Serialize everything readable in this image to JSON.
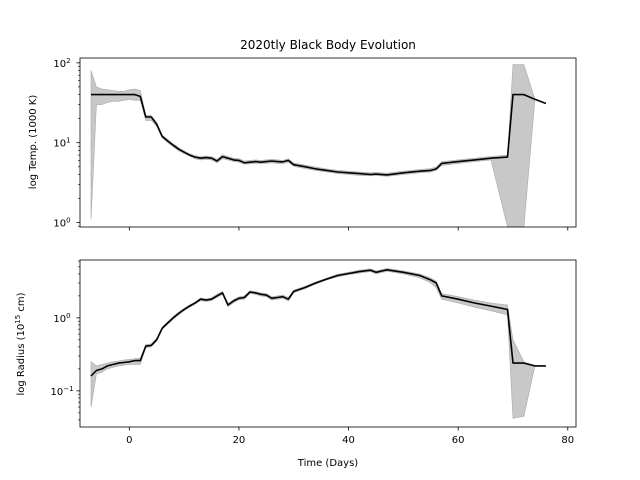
{
  "chart_data": {
    "type": "line",
    "title": "2020tly Black Body Evolution",
    "xlabel": "Time (Days)",
    "x_ticks": [
      0,
      20,
      40,
      60,
      80
    ],
    "xlim": [
      -9,
      81.5
    ],
    "colors": {
      "line": "#000000",
      "band": "#c8c8c8",
      "band_edge": "#a9a9a9"
    },
    "panels": [
      {
        "name": "temperature",
        "ylabel": "log Temp. (1000 K)",
        "yscale": "log",
        "ylim": [
          0.88,
          115
        ],
        "y_ticks": [
          {
            "value": 1,
            "base": "10",
            "exp": "0"
          },
          {
            "value": 10,
            "base": "10",
            "exp": "1"
          },
          {
            "value": 100,
            "base": "10",
            "exp": "2"
          }
        ],
        "x": [
          -7,
          -6,
          -5,
          -4,
          -3,
          -2,
          -1,
          0,
          1,
          2,
          3,
          4,
          5,
          6,
          7,
          8,
          9,
          10,
          11,
          12,
          13,
          14,
          15,
          16,
          17,
          18,
          19,
          20,
          21,
          22,
          23,
          24,
          25,
          26,
          27,
          28,
          29,
          30,
          32,
          34,
          36,
          38,
          40,
          42,
          44,
          45,
          47,
          50,
          53,
          55,
          56,
          57,
          60,
          63,
          66,
          69,
          70,
          72,
          74,
          76
        ],
        "y": [
          40,
          40,
          40,
          40,
          40,
          40,
          40,
          40,
          40,
          38,
          21,
          21,
          17,
          12,
          10.5,
          9.3,
          8.3,
          7.6,
          7.0,
          6.6,
          6.4,
          6.5,
          6.4,
          5.9,
          6.7,
          6.4,
          6.1,
          6.0,
          5.6,
          5.7,
          5.8,
          5.7,
          5.8,
          5.9,
          5.8,
          5.75,
          6.0,
          5.3,
          5.0,
          4.7,
          4.5,
          4.3,
          4.2,
          4.1,
          4.0,
          4.05,
          3.95,
          4.2,
          4.4,
          4.5,
          4.7,
          5.5,
          5.8,
          6.1,
          6.4,
          6.6,
          40,
          40,
          35,
          31
        ],
        "y_lower": [
          1.1,
          30,
          30,
          32,
          33,
          33,
          34,
          35,
          34,
          34,
          19,
          19,
          16,
          11.5,
          10,
          8.9,
          7.9,
          7.3,
          6.8,
          6.3,
          6.1,
          6.2,
          6.1,
          5.6,
          6.3,
          6.1,
          5.8,
          5.7,
          5.4,
          5.45,
          5.5,
          5.5,
          5.5,
          5.6,
          5.5,
          5.5,
          5.7,
          5.05,
          4.75,
          4.5,
          4.3,
          4.1,
          4.0,
          3.9,
          3.85,
          3.9,
          3.8,
          4.0,
          4.2,
          4.3,
          4.5,
          5.2,
          5.5,
          5.8,
          6.1,
          0.5,
          0.5,
          0.5,
          35,
          31
        ],
        "y_upper": [
          80,
          50,
          47,
          46,
          45,
          44,
          44,
          46,
          47,
          45,
          22,
          22,
          18,
          12.5,
          11,
          9.7,
          8.7,
          7.9,
          7.3,
          6.9,
          6.7,
          6.8,
          6.7,
          6.2,
          7.1,
          6.7,
          6.4,
          6.3,
          5.9,
          6.0,
          6.1,
          6.0,
          6.1,
          6.2,
          6.1,
          6.0,
          6.3,
          5.55,
          5.25,
          4.95,
          4.7,
          4.5,
          4.4,
          4.3,
          4.2,
          4.25,
          4.15,
          4.4,
          4.6,
          4.75,
          4.95,
          5.8,
          6.1,
          6.4,
          6.7,
          7.0,
          95,
          95,
          35,
          31
        ]
      },
      {
        "name": "radius",
        "ylabel_base": "log Radius (10",
        "ylabel_exp": "15",
        "ylabel_tail": " cm)",
        "yscale": "log",
        "ylim": [
          0.032,
          6.2
        ],
        "y_ticks": [
          {
            "value": 0.1,
            "base": "10",
            "exp": "−1"
          },
          {
            "value": 1,
            "base": "10",
            "exp": "0"
          }
        ],
        "x": [
          -7,
          -6,
          -5,
          -4,
          -3,
          -2,
          -1,
          0,
          1,
          2,
          3,
          4,
          5,
          6,
          7,
          8,
          9,
          10,
          11,
          12,
          13,
          14,
          15,
          16,
          17,
          18,
          19,
          20,
          21,
          22,
          23,
          24,
          25,
          26,
          27,
          28,
          29,
          30,
          32,
          34,
          36,
          38,
          40,
          42,
          44,
          45,
          47,
          50,
          53,
          55,
          56,
          57,
          60,
          63,
          66,
          69,
          70,
          72,
          74,
          76
        ],
        "y": [
          0.16,
          0.19,
          0.2,
          0.22,
          0.23,
          0.24,
          0.245,
          0.25,
          0.26,
          0.26,
          0.41,
          0.42,
          0.5,
          0.72,
          0.85,
          1.0,
          1.15,
          1.3,
          1.45,
          1.6,
          1.8,
          1.75,
          1.8,
          2.0,
          2.2,
          1.5,
          1.7,
          1.85,
          1.9,
          2.25,
          2.2,
          2.1,
          2.05,
          1.85,
          1.9,
          1.95,
          1.8,
          2.3,
          2.6,
          3.0,
          3.4,
          3.8,
          4.05,
          4.3,
          4.5,
          4.2,
          4.55,
          4.2,
          3.8,
          3.3,
          3.0,
          2.0,
          1.8,
          1.6,
          1.45,
          1.3,
          0.24,
          0.24,
          0.22,
          0.22
        ],
        "y_lower": [
          0.06,
          0.17,
          0.18,
          0.2,
          0.21,
          0.22,
          0.225,
          0.23,
          0.23,
          0.23,
          0.39,
          0.4,
          0.48,
          0.7,
          0.82,
          0.96,
          1.1,
          1.25,
          1.4,
          1.55,
          1.72,
          1.68,
          1.72,
          1.9,
          2.1,
          1.42,
          1.62,
          1.76,
          1.8,
          2.15,
          2.1,
          2.0,
          1.95,
          1.75,
          1.8,
          1.85,
          1.7,
          2.2,
          2.5,
          2.9,
          3.3,
          3.65,
          3.9,
          4.1,
          4.3,
          4.0,
          4.35,
          4.0,
          3.55,
          3.0,
          2.6,
          1.8,
          1.6,
          1.4,
          1.25,
          1.1,
          0.042,
          0.045,
          0.22,
          0.22
        ],
        "y_upper": [
          0.25,
          0.22,
          0.23,
          0.24,
          0.25,
          0.255,
          0.265,
          0.27,
          0.275,
          0.28,
          0.43,
          0.44,
          0.53,
          0.75,
          0.88,
          1.04,
          1.2,
          1.35,
          1.5,
          1.65,
          1.88,
          1.82,
          1.88,
          2.1,
          2.3,
          1.58,
          1.78,
          1.94,
          2.0,
          2.35,
          2.3,
          2.2,
          2.15,
          1.95,
          2.0,
          2.05,
          1.9,
          2.4,
          2.7,
          3.1,
          3.5,
          3.95,
          4.2,
          4.5,
          4.7,
          4.4,
          4.75,
          4.4,
          4.0,
          3.5,
          3.2,
          2.15,
          1.95,
          1.75,
          1.6,
          1.5,
          0.5,
          0.25,
          0.22,
          0.22
        ]
      }
    ]
  }
}
